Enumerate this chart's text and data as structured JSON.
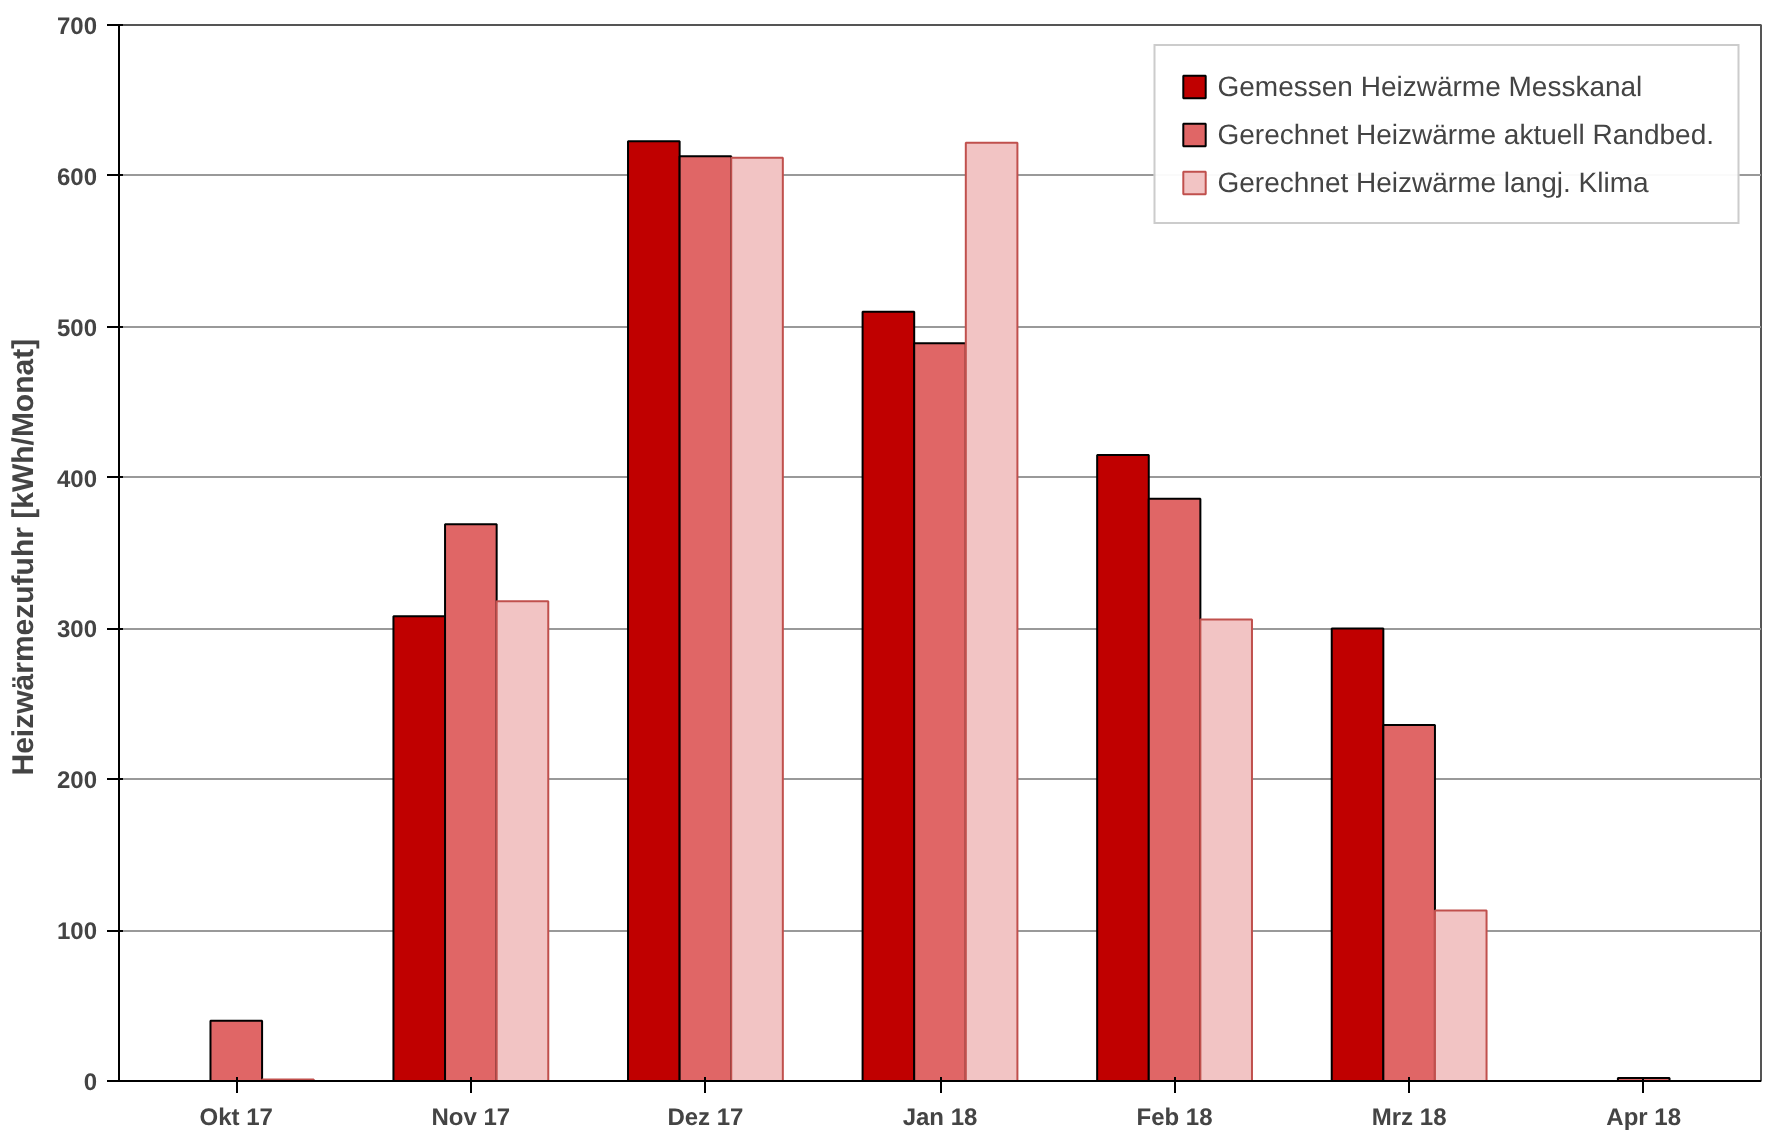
{
  "chart_data": {
    "type": "bar",
    "ylabel": "Heizwärmezufuhr  [kWh/Monat]",
    "categories": [
      "Okt 17",
      "Nov 17",
      "Dez 17",
      "Jan 18",
      "Feb 18",
      "Mrz 18",
      "Apr 18"
    ],
    "series": [
      {
        "name": "Gemessen Heizwärme Messkanal",
        "color": "#c00000",
        "values": [
          null,
          308,
          623,
          510,
          415,
          300,
          null
        ]
      },
      {
        "name": "Gerechnet Heizwärme aktuell Randbed.",
        "color": "#e06666",
        "values": [
          40,
          369,
          613,
          489,
          386,
          236,
          2
        ]
      },
      {
        "name": "Gerechnet Heizwärme langj. Klima",
        "color": "#f2c4c4",
        "values": [
          1,
          318,
          612,
          622,
          306,
          113,
          null
        ]
      }
    ],
    "ylim": [
      0,
      700
    ],
    "yticks": [
      0,
      100,
      200,
      300,
      400,
      500,
      600,
      700
    ],
    "grid": "y",
    "legend": "top right"
  }
}
